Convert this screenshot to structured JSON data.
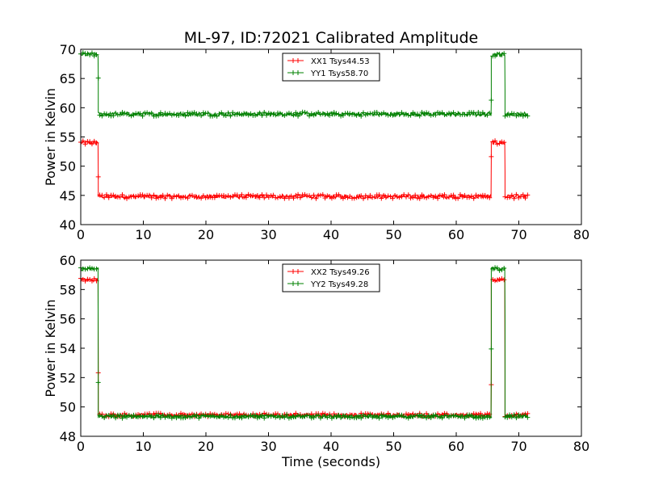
{
  "title": "ML-97, ID:72021 Calibrated Amplitude",
  "colors": {
    "xx": "#ff0000",
    "yy": "#008000"
  },
  "chart_data": [
    {
      "type": "line",
      "xlabel": "",
      "ylabel": "Power in Kelvin",
      "xlim": [
        0,
        80
      ],
      "ylim": [
        40,
        70
      ],
      "xticks": [
        "0",
        "10",
        "20",
        "30",
        "40",
        "50",
        "60",
        "70",
        "80"
      ],
      "yticks": [
        "40",
        "45",
        "50",
        "55",
        "60",
        "65",
        "70"
      ],
      "legend_position": "top-center",
      "series": [
        {
          "name": "XX1 Tsys44.53",
          "color": "#ff0000",
          "low": 44.8,
          "high": 54.0,
          "noise": 0.35
        },
        {
          "name": "YY1 Tsys58.70",
          "color": "#008000",
          "low": 58.9,
          "high": 69.1,
          "noise": 0.35
        }
      ],
      "segments": [
        {
          "x_start": 0,
          "x_end": 2.8,
          "state": "high"
        },
        {
          "x_start": 2.8,
          "x_end": 65.6,
          "state": "low"
        },
        {
          "x_start": 65.6,
          "x_end": 67.8,
          "state": "high"
        },
        {
          "x_start": 67.8,
          "x_end": 71.5,
          "state": "low"
        }
      ]
    },
    {
      "type": "line",
      "xlabel": "Time (seconds)",
      "ylabel": "Power in Kelvin",
      "xlim": [
        0,
        80
      ],
      "ylim": [
        48,
        60
      ],
      "xticks": [
        "0",
        "10",
        "20",
        "30",
        "40",
        "50",
        "60",
        "70",
        "80"
      ],
      "yticks": [
        "48",
        "50",
        "52",
        "54",
        "56",
        "58",
        "60"
      ],
      "legend_position": "top-center",
      "series": [
        {
          "name": "XX2 Tsys49.26",
          "color": "#ff0000",
          "low": 49.45,
          "high": 58.65,
          "noise": 0.12
        },
        {
          "name": "YY2 Tsys49.28",
          "color": "#008000",
          "low": 49.35,
          "high": 59.4,
          "noise": 0.12
        }
      ],
      "segments": [
        {
          "x_start": 0,
          "x_end": 2.8,
          "state": "high"
        },
        {
          "x_start": 2.8,
          "x_end": 65.6,
          "state": "low"
        },
        {
          "x_start": 65.6,
          "x_end": 67.8,
          "state": "high"
        },
        {
          "x_start": 67.8,
          "x_end": 71.5,
          "state": "low"
        }
      ]
    }
  ]
}
